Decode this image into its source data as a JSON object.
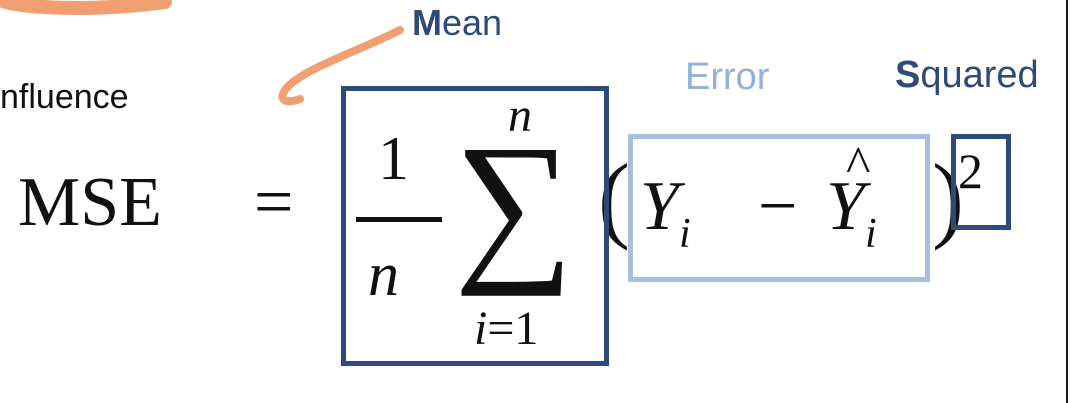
{
  "labels": {
    "mean_first": "M",
    "mean_rest": "ean",
    "error": "Error",
    "squared_first": "S",
    "squared_rest": "quared",
    "influence": "nfluence"
  },
  "formula": {
    "lhs": "MSE",
    "equals": "=",
    "numerator": "1",
    "denominator": "n",
    "sum_symbol": "∑",
    "sum_upper": "n",
    "sum_lower_index": "i",
    "sum_lower_rest": "=1",
    "left_paren": "(",
    "right_paren": ")",
    "y": "Y",
    "y_sub": "i",
    "minus": "−",
    "y_hat": "Y",
    "hat": "^",
    "y_hat_sub": "i",
    "exponent": "2"
  },
  "colors": {
    "dark_blue": "#2e4a78",
    "light_blue": "#a8bee0",
    "orange_annotation": "#f0a070"
  }
}
